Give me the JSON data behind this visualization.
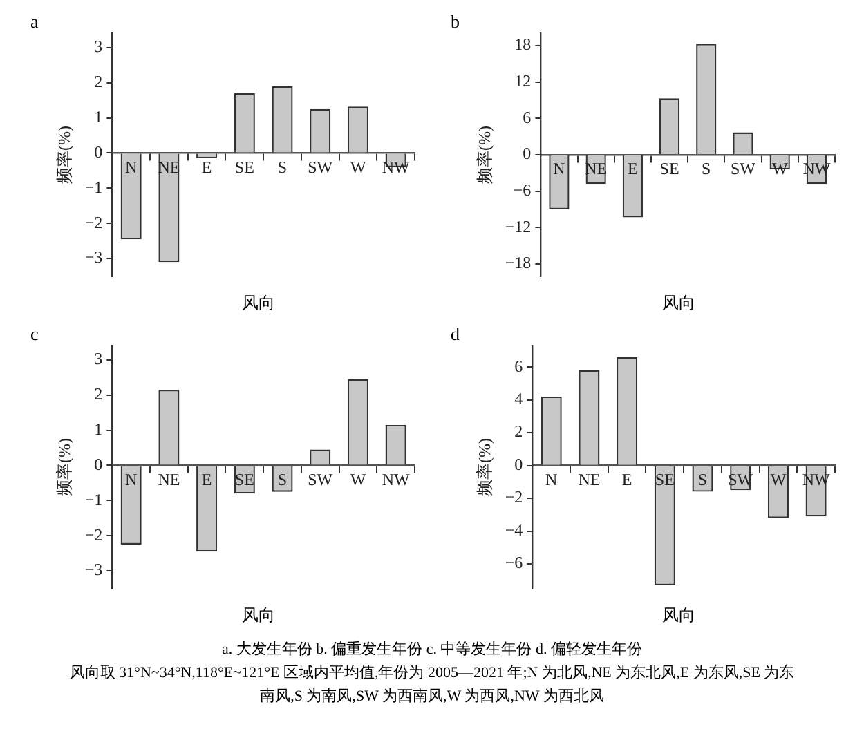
{
  "chart_data": [
    {
      "type": "bar",
      "title": "a",
      "xlabel": "风向",
      "ylabel": "频率(%)",
      "categories": [
        "N",
        "NE",
        "E",
        "SE",
        "S",
        "SW",
        "W",
        "NW"
      ],
      "values": [
        -2.45,
        -3.1,
        -0.15,
        1.7,
        1.9,
        1.25,
        1.32,
        -0.4
      ],
      "color": "#c8c8c8",
      "ylim": [
        -3.5,
        3.4
      ],
      "yticks": [
        -3,
        -2,
        -1,
        0,
        1,
        2,
        3
      ],
      "grid": false,
      "legend": false
    },
    {
      "type": "bar",
      "title": "b",
      "xlabel": "风向",
      "ylabel": "频率(%)",
      "categories": [
        "N",
        "NE",
        "E",
        "SE",
        "S",
        "SW",
        "W",
        "NW"
      ],
      "values": [
        -9,
        -4.8,
        -10.3,
        9.3,
        18.3,
        3.7,
        -2.4,
        -4.8
      ],
      "color": "#c8c8c8",
      "ylim": [
        -20,
        20
      ],
      "yticks": [
        -18,
        -12,
        -6,
        0,
        6,
        12,
        18
      ],
      "grid": false,
      "legend": false
    },
    {
      "type": "bar",
      "title": "c",
      "xlabel": "风向",
      "ylabel": "频率(%)",
      "categories": [
        "N",
        "NE",
        "E",
        "SE",
        "S",
        "SW",
        "W",
        "NW"
      ],
      "values": [
        -2.25,
        2.15,
        -2.45,
        -0.8,
        -0.75,
        0.45,
        2.45,
        1.15
      ],
      "color": "#c8c8c8",
      "ylim": [
        -3.5,
        3.4
      ],
      "yticks": [
        -3,
        -2,
        -1,
        0,
        1,
        2,
        3
      ],
      "grid": false,
      "legend": false
    },
    {
      "type": "bar",
      "title": "d",
      "xlabel": "风向",
      "ylabel": "频率(%)",
      "categories": [
        "N",
        "NE",
        "E",
        "SE",
        "S",
        "SW",
        "W",
        "NW"
      ],
      "values": [
        4.2,
        5.8,
        6.6,
        -7.3,
        -1.6,
        -1.5,
        -3.2,
        -3.1
      ],
      "color": "#c8c8c8",
      "ylim": [
        -7.5,
        7.3
      ],
      "yticks": [
        -6,
        -4,
        -2,
        0,
        2,
        4,
        6
      ],
      "grid": false,
      "legend": false,
      "annotations": [
        "a. 大发生年份  b. 偏重发生年份  c. 中等发生年份  d. 偏轻发生年份",
        "风向取 31°N~34°N,118°E~121°E 区域内平均值,年份为 2005—2021 年;N 为北风,NE 为东北风,E 为东风,SE 为东南风,S 为南风,SW 为西南风,W 为西风,NW 为西北风"
      ]
    }
  ]
}
